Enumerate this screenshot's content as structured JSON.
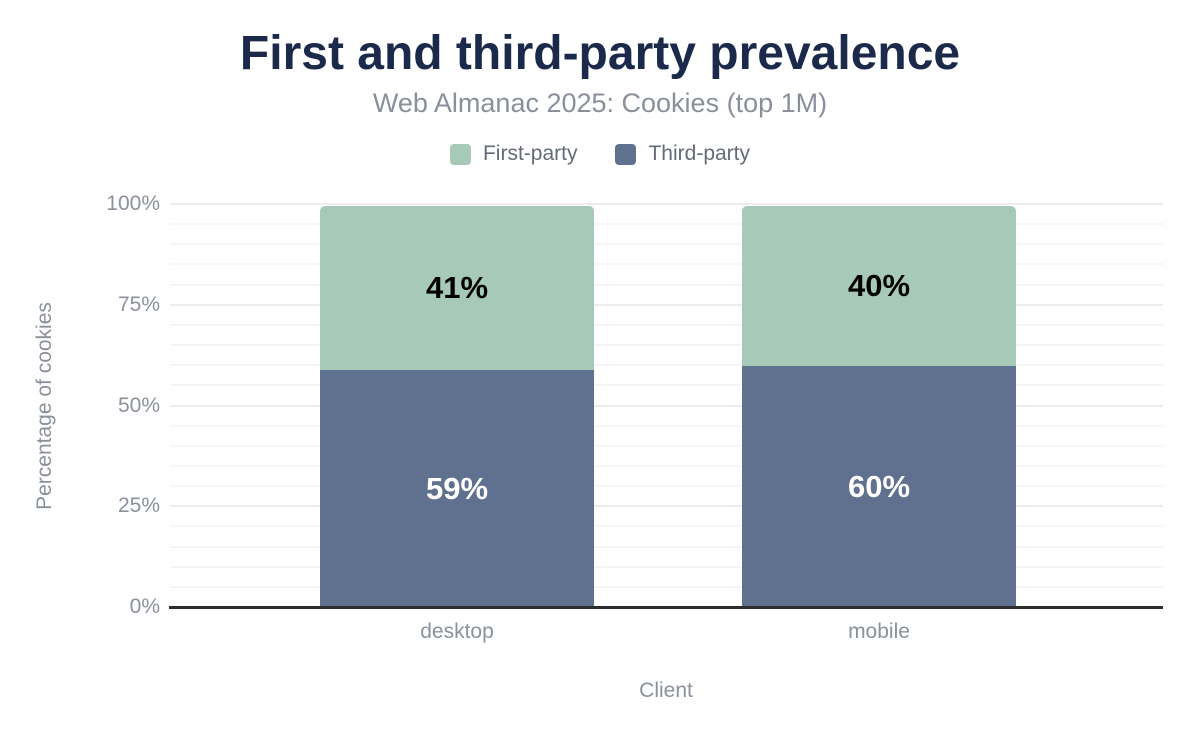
{
  "chart_data": {
    "type": "bar",
    "stacked": true,
    "title": "First and third-party prevalence",
    "subtitle": "Web Almanac 2025: Cookies (top 1M)",
    "xlabel": "Client",
    "ylabel": "Percentage of cookies",
    "categories": [
      "desktop",
      "mobile"
    ],
    "series": [
      {
        "name": "First-party",
        "values": [
          41,
          40
        ],
        "color": "#a6c9b8",
        "label_color": "#000000"
      },
      {
        "name": "Third-party",
        "values": [
          59,
          60
        ],
        "color": "#5f718e",
        "label_color": "#ffffff"
      }
    ],
    "stack_order": [
      1,
      0
    ],
    "value_label_format": "percent",
    "ylim": [
      0,
      100
    ],
    "yticks": [
      {
        "value": 0,
        "label": "0%"
      },
      {
        "value": 25,
        "label": "25%"
      },
      {
        "value": 50,
        "label": "50%"
      },
      {
        "value": 75,
        "label": "75%"
      },
      {
        "value": 100,
        "label": "100%"
      }
    ],
    "grid": {
      "minor_step": 5,
      "major_step": 25,
      "minor_color": "#f6f6f6",
      "major_color": "#ededed"
    },
    "legend_position": "top",
    "axis_line_color": "#2d2d2d",
    "colors": {
      "title": "#1b2a4a",
      "subtitle": "#8a909b",
      "axis_text": "#8b919b",
      "legend_text": "#646b77"
    }
  }
}
